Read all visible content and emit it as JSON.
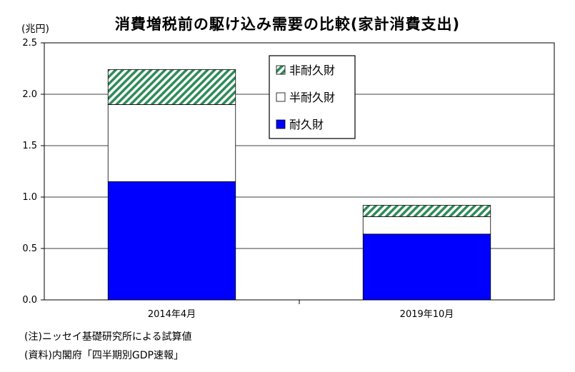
{
  "chart_data": {
    "type": "bar",
    "stacked": true,
    "title": "消費増税前の駆け込み需要の比較(家計消費支出)",
    "unit_label": "(兆円)",
    "ylim": [
      0,
      2.5
    ],
    "yticks": [
      "0.0",
      "0.5",
      "1.0",
      "1.5",
      "2.0",
      "2.5"
    ],
    "categories": [
      "2014年4月",
      "2019年10月"
    ],
    "series": [
      {
        "name": "耐久財",
        "values": [
          1.15,
          0.64
        ],
        "color": "#0000ff",
        "pattern": "solid"
      },
      {
        "name": "半耐久財",
        "values": [
          0.75,
          0.17
        ],
        "color": "#ffffff",
        "pattern": "solid"
      },
      {
        "name": "非耐久財",
        "values": [
          0.34,
          0.11
        ],
        "color": "#2e8b57",
        "pattern": "diagonal-hatch"
      }
    ],
    "legend": {
      "position": "top-right-inside",
      "order": [
        "非耐久財",
        "半耐久財",
        "耐久財"
      ]
    },
    "grid": {
      "horizontal": true,
      "color": "#000000"
    }
  },
  "notes": {
    "note1": "(注)ニッセイ基礎研究所による試算値",
    "note2": "(資料)内閣府「四半期別GDP速報」"
  }
}
